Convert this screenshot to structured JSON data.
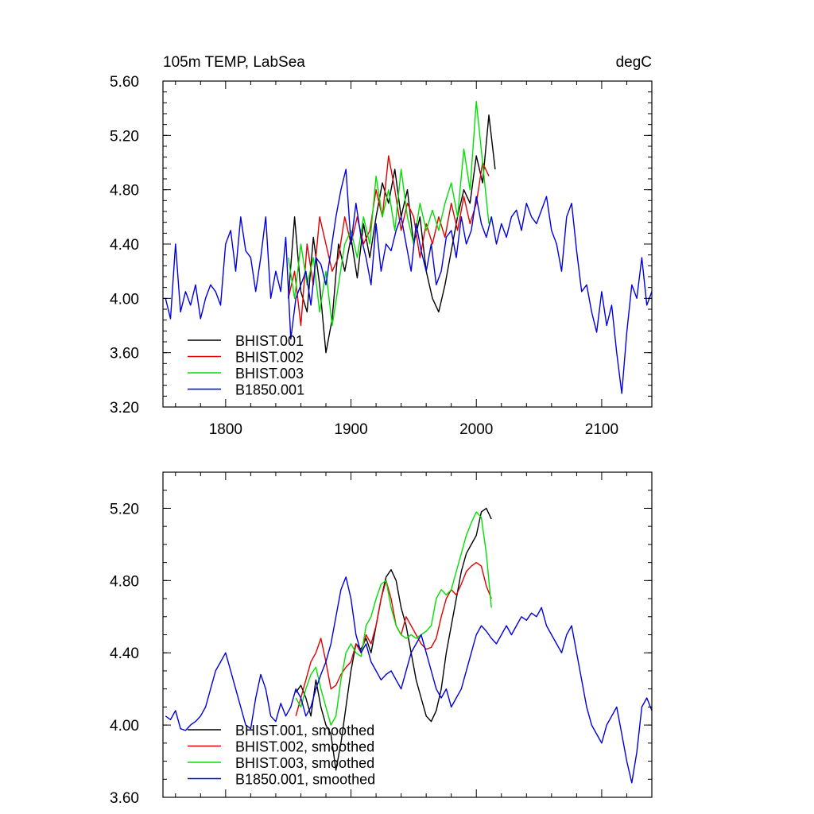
{
  "figure": {
    "title_left": "105m TEMP, LabSea",
    "title_right": "degC"
  },
  "colors": {
    "BHIST.001": "#000000",
    "BHIST.002": "#e00000",
    "BHIST.003": "#00e000",
    "B1850.001": "#0000e0"
  },
  "chart_data": [
    {
      "type": "line",
      "title": "105m TEMP, LabSea",
      "units": "degC",
      "xlim": [
        1750,
        2140
      ],
      "ylim": [
        3.2,
        5.6
      ],
      "x_ticks": [
        1800,
        1900,
        2000,
        2100
      ],
      "x_tick_labels": [
        "1800",
        "1900",
        "2000",
        "2100"
      ],
      "y_ticks": [
        3.2,
        3.6,
        4.0,
        4.4,
        4.8,
        5.2,
        5.6
      ],
      "y_tick_labels": [
        "3.20",
        "3.60",
        "4.00",
        "4.40",
        "4.80",
        "5.20",
        "5.60"
      ],
      "legend_position": "bottom-left",
      "series": [
        {
          "name": "BHIST.001",
          "color": "#000000",
          "x": [
            1850,
            1855,
            1860,
            1865,
            1870,
            1875,
            1880,
            1885,
            1890,
            1895,
            1900,
            1905,
            1910,
            1915,
            1920,
            1925,
            1930,
            1935,
            1940,
            1945,
            1950,
            1955,
            1960,
            1965,
            1970,
            1975,
            1980,
            1985,
            1990,
            1995,
            2000,
            2005,
            2010,
            2015
          ],
          "values": [
            4.0,
            4.6,
            4.05,
            3.9,
            4.45,
            4.1,
            3.6,
            3.85,
            4.4,
            4.2,
            4.45,
            4.15,
            4.55,
            4.3,
            4.6,
            4.85,
            4.7,
            4.95,
            4.6,
            4.8,
            4.4,
            4.6,
            4.2,
            4.0,
            3.9,
            4.1,
            4.35,
            4.6,
            4.8,
            4.7,
            5.05,
            4.85,
            5.35,
            4.95
          ]
        },
        {
          "name": "BHIST.002",
          "color": "#e00000",
          "x": [
            1850,
            1855,
            1860,
            1865,
            1870,
            1875,
            1880,
            1885,
            1890,
            1895,
            1900,
            1905,
            1910,
            1915,
            1920,
            1925,
            1930,
            1935,
            1940,
            1945,
            1950,
            1955,
            1960,
            1965,
            1970,
            1975,
            1980,
            1985,
            1990,
            1995,
            2000,
            2005,
            2010
          ],
          "values": [
            4.0,
            4.2,
            3.8,
            4.4,
            4.1,
            4.6,
            4.4,
            4.2,
            4.3,
            4.6,
            4.4,
            4.6,
            4.4,
            4.5,
            4.8,
            4.6,
            5.05,
            4.8,
            4.5,
            4.7,
            4.6,
            4.3,
            4.55,
            4.4,
            4.6,
            4.45,
            4.7,
            4.5,
            4.75,
            4.55,
            4.7,
            5.0,
            4.9
          ]
        },
        {
          "name": "BHIST.003",
          "color": "#00e000",
          "x": [
            1850,
            1855,
            1860,
            1865,
            1870,
            1875,
            1880,
            1885,
            1890,
            1895,
            1900,
            1905,
            1910,
            1915,
            1920,
            1925,
            1930,
            1935,
            1940,
            1945,
            1950,
            1955,
            1960,
            1965,
            1970,
            1975,
            1980,
            1985,
            1990,
            1995,
            2000,
            2005,
            2010
          ],
          "values": [
            4.3,
            4.0,
            4.4,
            4.1,
            4.3,
            3.9,
            4.2,
            3.8,
            4.1,
            4.4,
            4.5,
            4.3,
            4.6,
            4.4,
            4.9,
            4.6,
            4.8,
            4.5,
            4.95,
            4.6,
            4.4,
            4.7,
            4.5,
            4.65,
            4.5,
            4.7,
            4.85,
            4.6,
            5.1,
            4.8,
            5.45,
            5.0,
            4.55
          ]
        },
        {
          "name": "B1850.001",
          "color": "#0000e0",
          "x": [
            1752,
            1756,
            1760,
            1764,
            1768,
            1772,
            1776,
            1780,
            1784,
            1788,
            1792,
            1796,
            1800,
            1804,
            1808,
            1812,
            1816,
            1820,
            1824,
            1828,
            1832,
            1836,
            1840,
            1844,
            1848,
            1852,
            1856,
            1860,
            1864,
            1868,
            1872,
            1876,
            1880,
            1884,
            1888,
            1892,
            1896,
            1900,
            1904,
            1908,
            1912,
            1916,
            1920,
            1924,
            1928,
            1932,
            1936,
            1940,
            1944,
            1948,
            1952,
            1956,
            1960,
            1964,
            1968,
            1972,
            1976,
            1980,
            1984,
            1988,
            1992,
            1996,
            2000,
            2004,
            2008,
            2012,
            2016,
            2020,
            2024,
            2028,
            2032,
            2036,
            2040,
            2044,
            2048,
            2052,
            2056,
            2060,
            2064,
            2068,
            2072,
            2076,
            2080,
            2084,
            2088,
            2092,
            2096,
            2100,
            2104,
            2108,
            2112,
            2116,
            2120,
            2124,
            2128,
            2132,
            2136,
            2140
          ],
          "values": [
            4.0,
            3.85,
            4.4,
            3.9,
            4.05,
            3.95,
            4.1,
            3.85,
            4.0,
            4.1,
            4.05,
            3.95,
            4.4,
            4.5,
            4.2,
            4.6,
            4.35,
            4.3,
            4.05,
            4.3,
            4.6,
            4.0,
            4.2,
            4.05,
            4.45,
            3.7,
            4.0,
            4.1,
            4.2,
            3.95,
            4.3,
            4.25,
            4.1,
            4.35,
            4.6,
            4.8,
            4.95,
            4.4,
            4.7,
            4.45,
            4.3,
            4.1,
            4.55,
            4.2,
            4.4,
            4.35,
            4.5,
            4.6,
            4.4,
            4.2,
            4.55,
            4.35,
            4.2,
            4.4,
            4.1,
            4.2,
            4.45,
            4.5,
            4.3,
            4.6,
            4.4,
            4.5,
            4.75,
            4.55,
            4.45,
            4.6,
            4.4,
            4.55,
            4.45,
            4.6,
            4.65,
            4.5,
            4.7,
            4.6,
            4.55,
            4.65,
            4.75,
            4.5,
            4.4,
            4.2,
            4.6,
            4.7,
            4.35,
            4.05,
            4.1,
            3.9,
            3.75,
            4.05,
            3.8,
            3.95,
            3.6,
            3.3,
            3.75,
            4.1,
            4.0,
            4.3,
            3.95,
            4.05
          ]
        }
      ]
    },
    {
      "type": "line",
      "xlim": [
        1750,
        2140
      ],
      "ylim": [
        3.6,
        5.4
      ],
      "y_ticks": [
        3.6,
        4.0,
        4.4,
        4.8,
        5.2
      ],
      "y_tick_labels": [
        "3.60",
        "4.00",
        "4.40",
        "4.80",
        "5.20"
      ],
      "legend_position": "bottom-left",
      "series": [
        {
          "name": "BHIST.001, smoothed",
          "color": "#000000",
          "x": [
            1856,
            1860,
            1864,
            1868,
            1872,
            1876,
            1880,
            1884,
            1888,
            1892,
            1896,
            1900,
            1904,
            1908,
            1912,
            1916,
            1920,
            1924,
            1928,
            1932,
            1936,
            1940,
            1944,
            1948,
            1952,
            1956,
            1960,
            1964,
            1968,
            1972,
            1976,
            1980,
            1984,
            1988,
            1992,
            1996,
            2000,
            2004,
            2008,
            2012
          ],
          "values": [
            4.18,
            4.22,
            4.15,
            4.05,
            4.25,
            4.1,
            4.0,
            3.95,
            3.75,
            3.9,
            4.1,
            4.3,
            4.45,
            4.42,
            4.48,
            4.4,
            4.55,
            4.7,
            4.82,
            4.86,
            4.8,
            4.65,
            4.55,
            4.4,
            4.25,
            4.15,
            4.05,
            4.02,
            4.08,
            4.2,
            4.4,
            4.55,
            4.7,
            4.85,
            4.95,
            5.0,
            5.05,
            5.18,
            5.2,
            5.14
          ]
        },
        {
          "name": "BHIST.002, smoothed",
          "color": "#e00000",
          "x": [
            1856,
            1860,
            1864,
            1868,
            1872,
            1876,
            1880,
            1884,
            1888,
            1892,
            1896,
            1900,
            1904,
            1908,
            1912,
            1916,
            1920,
            1924,
            1928,
            1932,
            1936,
            1940,
            1944,
            1948,
            1952,
            1956,
            1960,
            1964,
            1968,
            1972,
            1976,
            1980,
            1984,
            1988,
            1992,
            1996,
            2000,
            2004,
            2008,
            2012
          ],
          "values": [
            4.05,
            4.15,
            4.25,
            4.35,
            4.4,
            4.48,
            4.35,
            4.2,
            4.22,
            4.28,
            4.32,
            4.35,
            4.45,
            4.4,
            4.5,
            4.45,
            4.55,
            4.7,
            4.8,
            4.7,
            4.55,
            4.5,
            4.6,
            4.55,
            4.5,
            4.45,
            4.42,
            4.43,
            4.48,
            4.6,
            4.7,
            4.75,
            4.72,
            4.78,
            4.85,
            4.88,
            4.9,
            4.88,
            4.77,
            4.7
          ]
        },
        {
          "name": "BHIST.003, smoothed",
          "color": "#00e000",
          "x": [
            1856,
            1860,
            1864,
            1868,
            1872,
            1876,
            1880,
            1884,
            1888,
            1892,
            1896,
            1900,
            1904,
            1908,
            1912,
            1916,
            1920,
            1924,
            1928,
            1932,
            1936,
            1940,
            1944,
            1948,
            1952,
            1956,
            1960,
            1964,
            1968,
            1972,
            1976,
            1980,
            1984,
            1988,
            1992,
            1996,
            2000,
            2004,
            2008,
            2012
          ],
          "values": [
            4.15,
            4.1,
            4.2,
            4.28,
            4.32,
            4.2,
            4.1,
            4.0,
            4.05,
            4.25,
            4.4,
            4.45,
            4.4,
            4.38,
            4.55,
            4.6,
            4.7,
            4.78,
            4.8,
            4.65,
            4.55,
            4.5,
            4.48,
            4.5,
            4.48,
            4.5,
            4.52,
            4.55,
            4.7,
            4.75,
            4.72,
            4.75,
            4.85,
            4.95,
            5.05,
            5.12,
            5.18,
            5.15,
            4.95,
            4.65
          ]
        },
        {
          "name": "B1850.001, smoothed",
          "color": "#0000e0",
          "x": [
            1752,
            1756,
            1760,
            1764,
            1768,
            1772,
            1776,
            1780,
            1784,
            1788,
            1792,
            1796,
            1800,
            1804,
            1808,
            1812,
            1816,
            1820,
            1824,
            1828,
            1832,
            1836,
            1840,
            1844,
            1848,
            1852,
            1856,
            1860,
            1864,
            1868,
            1872,
            1876,
            1880,
            1884,
            1888,
            1892,
            1896,
            1900,
            1904,
            1908,
            1912,
            1916,
            1920,
            1924,
            1928,
            1932,
            1936,
            1940,
            1944,
            1948,
            1952,
            1956,
            1960,
            1964,
            1968,
            1972,
            1976,
            1980,
            1984,
            1988,
            1992,
            1996,
            2000,
            2004,
            2008,
            2012,
            2016,
            2020,
            2024,
            2028,
            2032,
            2036,
            2040,
            2044,
            2048,
            2052,
            2056,
            2060,
            2064,
            2068,
            2072,
            2076,
            2080,
            2084,
            2088,
            2092,
            2096,
            2100,
            2104,
            2108,
            2112,
            2116,
            2120,
            2124,
            2128,
            2132,
            2136,
            2140
          ],
          "values": [
            4.05,
            4.03,
            4.08,
            3.98,
            3.97,
            4.0,
            4.02,
            4.05,
            4.1,
            4.2,
            4.3,
            4.35,
            4.4,
            4.3,
            4.2,
            4.1,
            4.0,
            3.98,
            4.15,
            4.28,
            4.2,
            4.05,
            4.02,
            4.12,
            4.05,
            4.1,
            4.2,
            4.15,
            4.05,
            4.1,
            4.2,
            4.28,
            4.35,
            4.45,
            4.6,
            4.75,
            4.82,
            4.7,
            4.5,
            4.4,
            4.45,
            4.35,
            4.3,
            4.25,
            4.28,
            4.3,
            4.25,
            4.2,
            4.3,
            4.4,
            4.45,
            4.5,
            4.4,
            4.3,
            4.2,
            4.15,
            4.2,
            4.1,
            4.15,
            4.2,
            4.3,
            4.4,
            4.5,
            4.55,
            4.52,
            4.48,
            4.45,
            4.5,
            4.55,
            4.5,
            4.55,
            4.6,
            4.58,
            4.62,
            4.6,
            4.65,
            4.55,
            4.5,
            4.45,
            4.4,
            4.5,
            4.55,
            4.4,
            4.25,
            4.1,
            4.0,
            3.95,
            3.9,
            4.0,
            4.05,
            4.1,
            3.95,
            3.8,
            3.68,
            3.85,
            4.1,
            4.15,
            4.08
          ]
        }
      ]
    }
  ]
}
